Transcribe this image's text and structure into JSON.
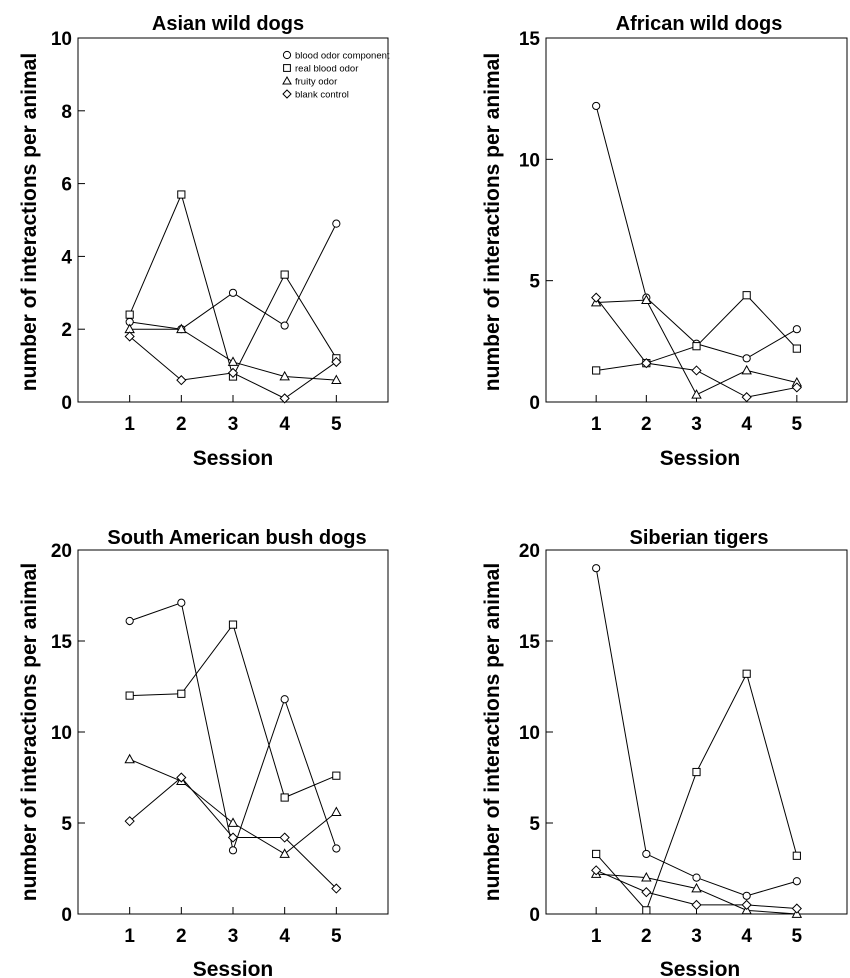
{
  "colors": {
    "ink": "#000000",
    "background": "#ffffff",
    "marker_fill": "#ffffff"
  },
  "series_markers": [
    "circle",
    "square",
    "triangle",
    "diamond"
  ],
  "chart_data": [
    {
      "type": "line",
      "title": "Asian wild dogs",
      "xlabel": "Session",
      "ylabel": "number of interactions per animal",
      "x": [
        1,
        2,
        3,
        4,
        5
      ],
      "xticks": [
        "1",
        "2",
        "3",
        "4",
        "5"
      ],
      "xlim": [
        0,
        6
      ],
      "ylim": [
        0,
        10
      ],
      "yticks": [
        "0",
        "2",
        "4",
        "6",
        "8",
        "10"
      ],
      "legend_position": "top-right",
      "series": [
        {
          "name": "blood odor component",
          "marker": "circle",
          "values": [
            2.2,
            2.0,
            3.0,
            2.1,
            4.9
          ]
        },
        {
          "name": "real blood odor",
          "marker": "square",
          "values": [
            2.4,
            5.7,
            0.7,
            3.5,
            1.2
          ]
        },
        {
          "name": "fruity odor",
          "marker": "triangle",
          "values": [
            2.0,
            2.0,
            1.1,
            0.7,
            0.6
          ]
        },
        {
          "name": "blank control",
          "marker": "diamond",
          "values": [
            1.8,
            0.6,
            0.8,
            0.1,
            1.1
          ]
        }
      ]
    },
    {
      "type": "line",
      "title": "African wild dogs",
      "xlabel": "Session",
      "ylabel": "number of interactions per animal",
      "x": [
        1,
        2,
        3,
        4,
        5
      ],
      "xticks": [
        "1",
        "2",
        "3",
        "4",
        "5"
      ],
      "xlim": [
        0,
        6
      ],
      "ylim": [
        0,
        15
      ],
      "yticks": [
        "0",
        "5",
        "10",
        "15"
      ],
      "series": [
        {
          "marker": "circle",
          "values": [
            12.2,
            4.3,
            2.4,
            1.8,
            3.0
          ]
        },
        {
          "marker": "square",
          "values": [
            1.3,
            1.6,
            2.3,
            4.4,
            2.2
          ]
        },
        {
          "marker": "triangle",
          "values": [
            4.1,
            4.2,
            0.3,
            1.3,
            0.8
          ]
        },
        {
          "marker": "diamond",
          "values": [
            4.3,
            1.6,
            1.3,
            0.2,
            0.6
          ]
        }
      ]
    },
    {
      "type": "line",
      "title": "South American bush dogs",
      "xlabel": "Session",
      "ylabel": "number of interactions per animal",
      "x": [
        1,
        2,
        3,
        4,
        5
      ],
      "xticks": [
        "1",
        "2",
        "3",
        "4",
        "5"
      ],
      "xlim": [
        0,
        6
      ],
      "ylim": [
        0,
        20
      ],
      "yticks": [
        "0",
        "5",
        "10",
        "15",
        "20"
      ],
      "series": [
        {
          "marker": "circle",
          "values": [
            16.1,
            17.1,
            3.5,
            11.8,
            3.6
          ]
        },
        {
          "marker": "square",
          "values": [
            12.0,
            12.1,
            15.9,
            6.4,
            7.6
          ]
        },
        {
          "marker": "triangle",
          "values": [
            8.5,
            7.3,
            5.0,
            3.3,
            5.6
          ]
        },
        {
          "marker": "diamond",
          "values": [
            5.1,
            7.5,
            4.2,
            4.2,
            1.4
          ]
        }
      ]
    },
    {
      "type": "line",
      "title": "Siberian tigers",
      "xlabel": "Session",
      "ylabel": "number of interactions per animal",
      "x": [
        1,
        2,
        3,
        4,
        5
      ],
      "xticks": [
        "1",
        "2",
        "3",
        "4",
        "5"
      ],
      "xlim": [
        0,
        6
      ],
      "ylim": [
        0,
        20
      ],
      "yticks": [
        "0",
        "5",
        "10",
        "15",
        "20"
      ],
      "series": [
        {
          "marker": "circle",
          "values": [
            19.0,
            3.3,
            2.0,
            1.0,
            1.8
          ]
        },
        {
          "marker": "square",
          "values": [
            3.3,
            0.2,
            7.8,
            13.2,
            3.2
          ]
        },
        {
          "marker": "triangle",
          "values": [
            2.2,
            2.0,
            1.4,
            0.2,
            0.0
          ]
        },
        {
          "marker": "diamond",
          "values": [
            2.4,
            1.2,
            0.5,
            0.5,
            0.3
          ]
        }
      ]
    }
  ]
}
